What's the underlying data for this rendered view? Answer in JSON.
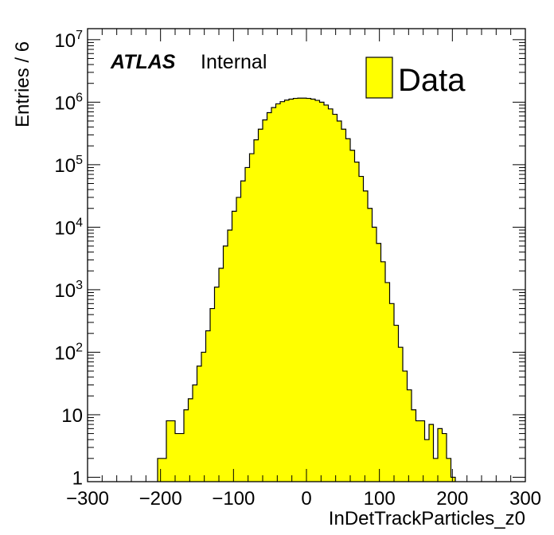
{
  "chart_data": {
    "type": "bar",
    "histogram": true,
    "xlabel": "InDetTrackParticles_z0",
    "ylabel": "Entries / 6",
    "xlim": [
      -300,
      300
    ],
    "ylim": [
      0.85,
      15000000
    ],
    "y_scale": "log",
    "bin_width": 6,
    "x_ticks": [
      "−300",
      "−200",
      "−100",
      "0",
      "100",
      "200",
      "300"
    ],
    "y_ticks": [
      {
        "base": "1",
        "exp": ""
      },
      {
        "base": "10",
        "exp": ""
      },
      {
        "base": "10",
        "exp": "2"
      },
      {
        "base": "10",
        "exp": "3"
      },
      {
        "base": "10",
        "exp": "4"
      },
      {
        "base": "10",
        "exp": "5"
      },
      {
        "base": "10",
        "exp": "6"
      },
      {
        "base": "10",
        "exp": "7"
      }
    ],
    "legend": {
      "entries": [
        "Data"
      ],
      "position": "top-right"
    },
    "annotation": {
      "experiment": "ATLAS",
      "status": "Internal"
    },
    "fill_color": "#ffff00",
    "line_color": "#000000",
    "series": [
      {
        "name": "Data",
        "bin_low_edges": [
          -204,
          -198,
          -192,
          -186,
          -180,
          -174,
          -168,
          -162,
          -156,
          -150,
          -144,
          -138,
          -132,
          -126,
          -120,
          -114,
          -108,
          -102,
          -96,
          -90,
          -84,
          -78,
          -72,
          -66,
          -60,
          -54,
          -48,
          -42,
          -36,
          -30,
          -24,
          -18,
          -12,
          -6,
          0,
          6,
          12,
          18,
          24,
          30,
          36,
          42,
          48,
          54,
          60,
          66,
          72,
          78,
          84,
          90,
          96,
          102,
          108,
          114,
          120,
          126,
          132,
          138,
          144,
          150,
          156,
          162,
          168,
          174,
          180,
          186,
          192,
          198
        ],
        "values": [
          2,
          2,
          8,
          8,
          5,
          5,
          12,
          18,
          30,
          60,
          100,
          220,
          500,
          1100,
          2200,
          5000,
          9000,
          18000,
          30000,
          55000,
          90000,
          150000,
          250000,
          370000,
          520000,
          680000,
          820000,
          940000,
          1020000,
          1080000,
          1120000,
          1150000,
          1160000,
          1160000,
          1150000,
          1120000,
          1070000,
          1000000,
          900000,
          780000,
          640000,
          500000,
          370000,
          260000,
          170000,
          110000,
          65000,
          38000,
          20000,
          10000,
          5500,
          2800,
          1300,
          600,
          270,
          120,
          50,
          25,
          12,
          8,
          8,
          4,
          7,
          2,
          6,
          5,
          2,
          1
        ]
      }
    ]
  }
}
